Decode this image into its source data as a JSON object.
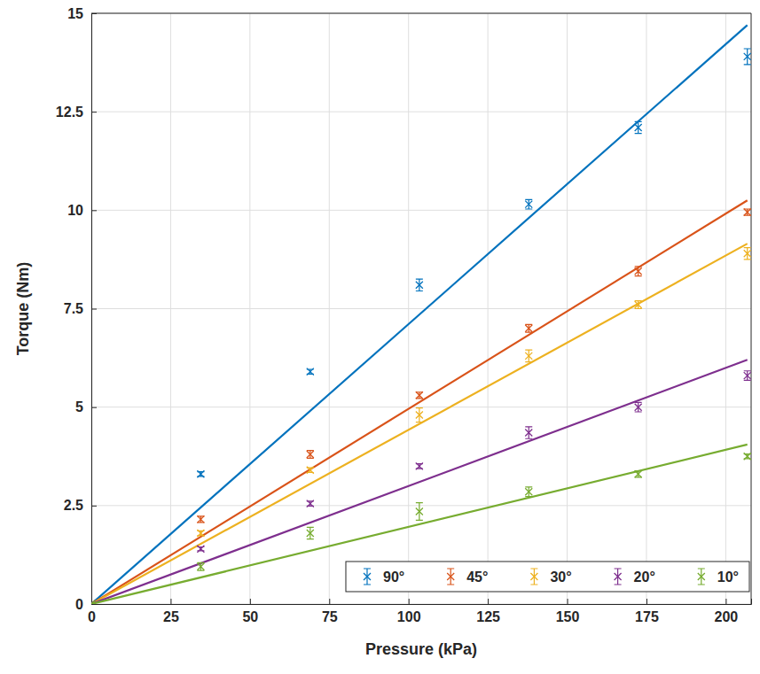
{
  "chart_data": {
    "type": "scatter",
    "x_label": "Pressure (kPa)",
    "y_label": "Torque (Nm)",
    "x": [
      0,
      34.5,
      69,
      103.4,
      137.9,
      172.4,
      206.8
    ],
    "fit_x": [
      0,
      206.8
    ],
    "series": [
      {
        "name": "90°",
        "color": "#0072bd",
        "marker": "x",
        "values": [
          0,
          3.3,
          5.9,
          8.1,
          10.15,
          12.1,
          13.9
        ],
        "errors": [
          0,
          0.06,
          0.06,
          0.15,
          0.12,
          0.15,
          0.2
        ],
        "fit": [
          0,
          14.7
        ]
      },
      {
        "name": "45°",
        "color": "#d95319",
        "marker": "x",
        "values": [
          0,
          2.15,
          3.8,
          5.3,
          7.0,
          8.45,
          9.95
        ],
        "errors": [
          0,
          0.08,
          0.1,
          0.08,
          0.1,
          0.12,
          0.08
        ],
        "fit": [
          0,
          10.25
        ]
      },
      {
        "name": "30°",
        "color": "#edb120",
        "marker": "x",
        "values": [
          0,
          1.8,
          3.4,
          4.8,
          6.3,
          7.6,
          8.9
        ],
        "errors": [
          0,
          0.06,
          0.06,
          0.18,
          0.15,
          0.1,
          0.15
        ],
        "fit": [
          0,
          9.15
        ]
      },
      {
        "name": "20°",
        "color": "#7e2f8e",
        "marker": "x",
        "values": [
          0,
          1.4,
          2.55,
          3.5,
          4.35,
          5.0,
          5.8
        ],
        "errors": [
          0,
          0.05,
          0.06,
          0.06,
          0.15,
          0.12,
          0.12
        ],
        "fit": [
          0,
          6.2
        ]
      },
      {
        "name": "10°",
        "color": "#77ac30",
        "marker": "x",
        "values": [
          0,
          0.95,
          1.8,
          2.35,
          2.85,
          3.3,
          3.75
        ],
        "errors": [
          0,
          0.1,
          0.15,
          0.22,
          0.12,
          0.08,
          0.06
        ],
        "fit": [
          0,
          4.05
        ]
      }
    ],
    "xlim": [
      0,
      208
    ],
    "ylim": [
      0,
      15
    ],
    "xticks": [
      0,
      25,
      50,
      75,
      100,
      125,
      150,
      175,
      200
    ],
    "yticks": [
      0,
      2.5,
      5,
      7.5,
      10,
      12.5,
      15
    ],
    "grid": true,
    "legend": "lower right"
  }
}
